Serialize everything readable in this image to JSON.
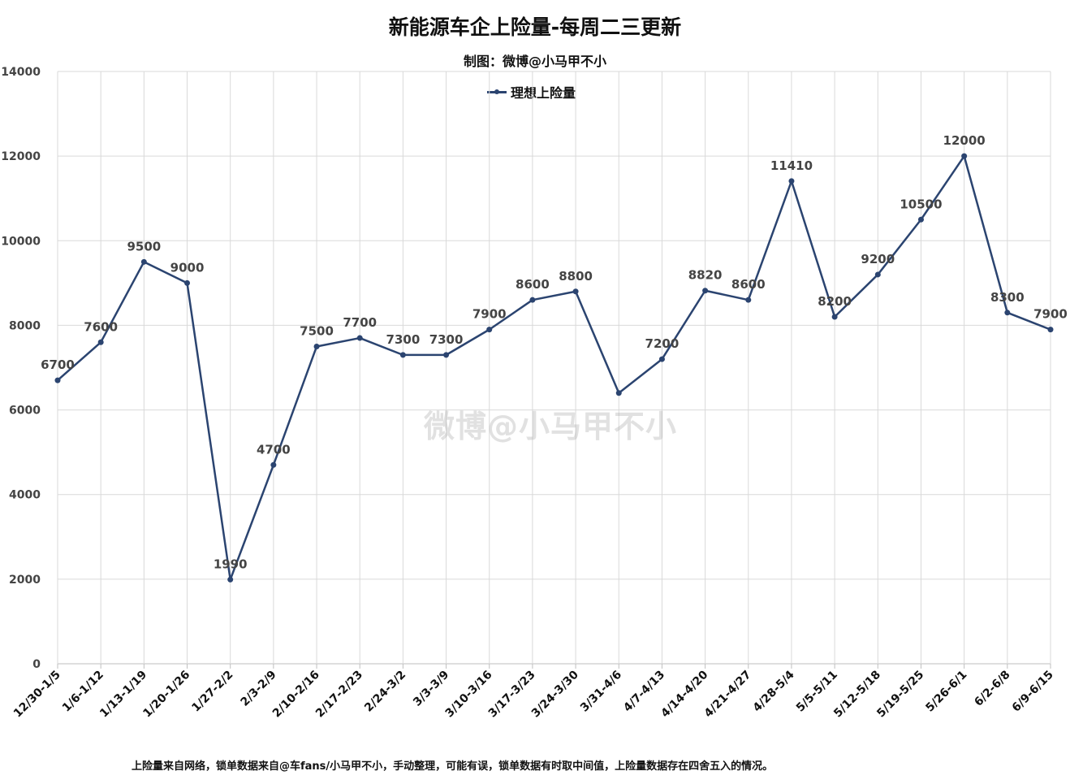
{
  "title": "新能源车企上险量-每周二三更新",
  "subtitle": "制图：微博@小马甲不小",
  "watermark": "微博@小马甲不小",
  "footnote": "上险量来自网络，锁单数据来自@车fans/小马甲不小，手动整理，可能有误，锁单数据有时取中间值，上险量数据存在四舍五入的情况。",
  "chart_data": {
    "type": "line",
    "title": "新能源车企上险量-每周二三更新",
    "subtitle": "制图：微博@小马甲不小",
    "categories": [
      "12/30-1/5",
      "1/6-1/12",
      "1/13-1/19",
      "1/20-1/26",
      "1/27-2/2",
      "2/3-2/9",
      "2/10-2/16",
      "2/17-2/23",
      "2/24-3/2",
      "3/3-3/9",
      "3/10-3/16",
      "3/17-3/23",
      "3/24-3/30",
      "3/31-4/6",
      "4/7-4/13",
      "4/14-4/20",
      "4/21-4/27",
      "4/28-5/4",
      "5/5-5/11",
      "5/12-5/18",
      "5/19-5/25",
      "5/26-6/1",
      "6/2-6/8",
      "6/9-6/15"
    ],
    "series": [
      {
        "name": "理想上险量",
        "color": "#2b4470",
        "values": [
          6700,
          7600,
          9500,
          9000,
          1990,
          4700,
          7500,
          7700,
          7300,
          7300,
          7900,
          8600,
          8800,
          6400,
          7200,
          8820,
          8600,
          11410,
          8200,
          9200,
          10500,
          12000,
          8300,
          7900
        ],
        "labels": [
          "6700",
          "7600",
          "9500",
          "9000",
          "1990",
          "4700",
          "7500",
          "7700",
          "7300",
          "7300",
          "7900",
          "8600",
          "8800",
          "",
          "7200",
          "8820",
          "8600",
          "11410",
          "8200",
          "9200",
          "10500",
          "12000",
          "8300",
          "7900"
        ]
      }
    ],
    "yticks": [
      "0",
      "2000",
      "4000",
      "6000",
      "8000",
      "10000",
      "12000",
      "14000"
    ],
    "ylim": [
      0,
      14000
    ],
    "grid": true,
    "legend": "top-center"
  }
}
